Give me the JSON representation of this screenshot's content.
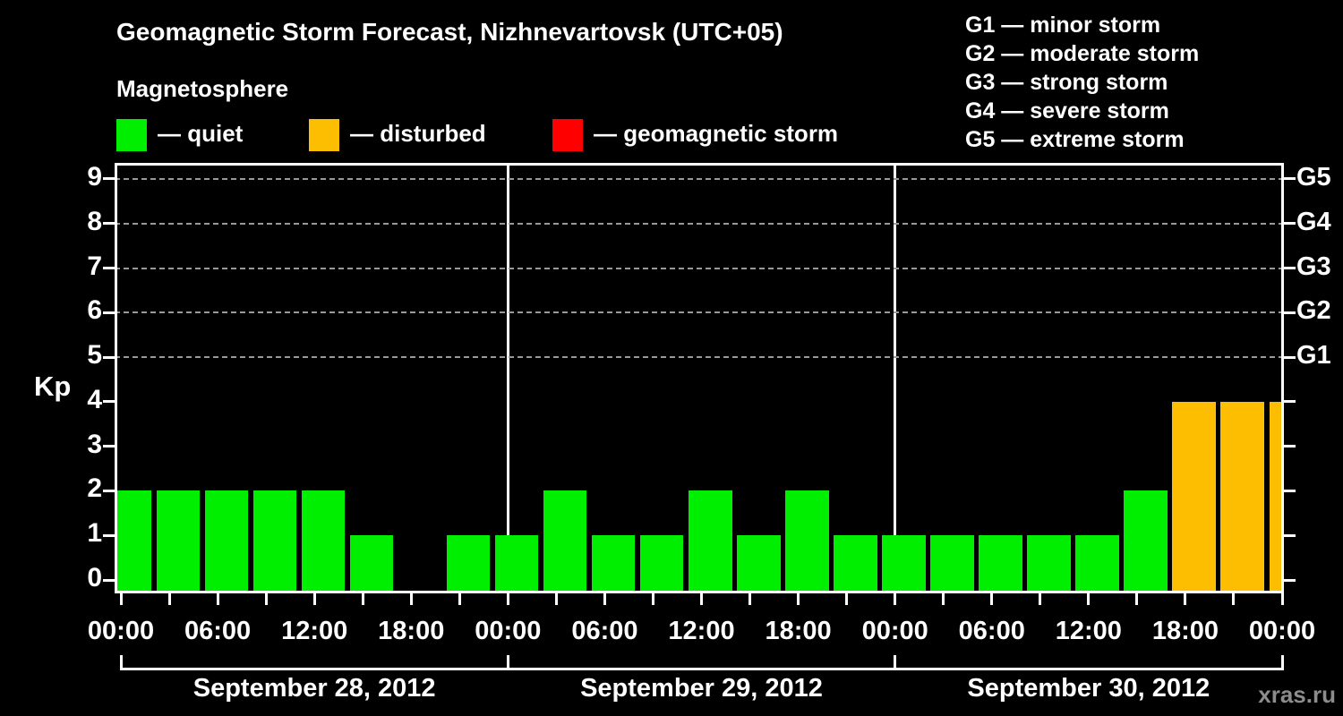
{
  "title": "Geomagnetic Storm Forecast, Nizhnevartovsk (UTC+05)",
  "subtitle": "Magnetosphere",
  "kp_axis_label": "Kp",
  "watermark": "xras.ru",
  "legend": [
    {
      "name": "quiet",
      "label": "— quiet",
      "color": "#00EE00"
    },
    {
      "name": "disturbed",
      "label": "— disturbed",
      "color": "#FDBE02"
    },
    {
      "name": "storm",
      "label": "— geomagnetic storm",
      "color": "#FF0000"
    }
  ],
  "g_scale_legend": [
    "G1 — minor storm",
    "G2 — moderate storm",
    "G3 — strong storm",
    "G4 — severe storm",
    "G5 — extreme storm"
  ],
  "chart_data": {
    "type": "bar",
    "title": "Geomagnetic Storm Forecast, Nizhnevartovsk (UTC+05)",
    "ylabel": "Kp",
    "ylim": [
      0,
      9
    ],
    "yticks": [
      0,
      1,
      2,
      3,
      4,
      5,
      6,
      7,
      8,
      9
    ],
    "gridlines_at": [
      5,
      6,
      7,
      8,
      9
    ],
    "right_axis": [
      {
        "kp": 5,
        "label": "G1"
      },
      {
        "kp": 6,
        "label": "G2"
      },
      {
        "kp": 7,
        "label": "G3"
      },
      {
        "kp": 8,
        "label": "G4"
      },
      {
        "kp": 9,
        "label": "G5"
      }
    ],
    "x_tick_interval_hours": 3,
    "x_time_labels": [
      "00:00",
      "06:00",
      "12:00",
      "18:00",
      "00:00",
      "06:00",
      "12:00",
      "18:00",
      "00:00",
      "06:00",
      "12:00",
      "18:00",
      "00:00"
    ],
    "days": [
      {
        "date": "September 28, 2012",
        "kp_3h": [
          2,
          2,
          2,
          2,
          2,
          1,
          0,
          1
        ]
      },
      {
        "date": "September 29, 2012",
        "kp_3h": [
          1,
          2,
          1,
          1,
          2,
          1,
          2,
          1
        ]
      },
      {
        "date": "September 30, 2012",
        "kp_3h": [
          1,
          1,
          1,
          1,
          1,
          2,
          4,
          4
        ]
      }
    ],
    "next_period_partial_kp": 4,
    "color_rules": {
      "quiet_max": 3,
      "disturbed_value": 4,
      "storm_min": 5
    },
    "colors": {
      "quiet": "#00EE00",
      "disturbed": "#FDBE02",
      "storm": "#FF0000",
      "grid": "#999999",
      "axis": "#FFFFFF",
      "background": "#000000"
    }
  }
}
